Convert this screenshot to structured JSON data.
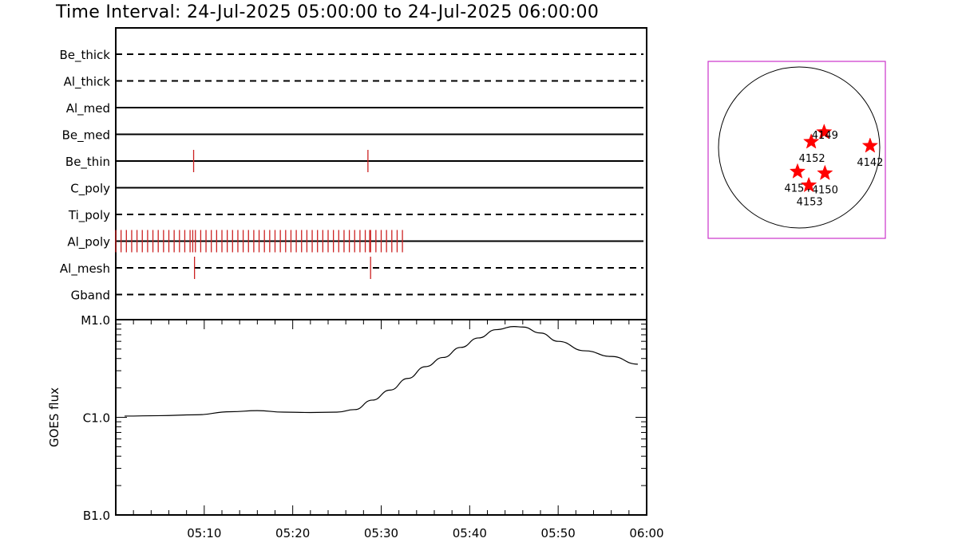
{
  "title": "Time Interval: 24-Jul-2025 05:00:00 to 24-Jul-2025 06:00:00",
  "chart_data": [
    {
      "type": "timeline",
      "x_range_minutes": [
        0,
        60
      ],
      "filters": [
        {
          "name": "Be_thick",
          "style": "dashed",
          "marks": []
        },
        {
          "name": "Al_thick",
          "style": "dashed",
          "marks": []
        },
        {
          "name": "Al_med",
          "style": "solid",
          "marks": []
        },
        {
          "name": "Be_med",
          "style": "solid",
          "marks": []
        },
        {
          "name": "Be_thin",
          "style": "solid",
          "marks": [
            8.8,
            28.5
          ]
        },
        {
          "name": "C_poly",
          "style": "solid",
          "marks": []
        },
        {
          "name": "Ti_poly",
          "style": "dashed",
          "marks": []
        },
        {
          "name": "Al_poly",
          "style": "solid",
          "marks": "dense",
          "mark_start": 0,
          "mark_end": 32.8,
          "mark_step": 0.6
        },
        {
          "name": "Al_mesh",
          "style": "dashed",
          "marks": [
            8.9,
            28.8
          ]
        },
        {
          "name": "Gband",
          "style": "dashed",
          "marks": []
        }
      ],
      "mark_color": "#cc2222"
    },
    {
      "type": "line",
      "ylabel": "GOES flux",
      "y_scale": "log",
      "y_ticks": [
        {
          "label": "B1.0",
          "value": 1e-07
        },
        {
          "label": "C1.0",
          "value": 1e-06
        },
        {
          "label": "M1.0",
          "value": 1e-05
        }
      ],
      "x_ticks": [
        "05:10",
        "05:20",
        "05:30",
        "05:40",
        "05:50",
        "06:00"
      ],
      "x_tick_minutes": [
        10,
        20,
        30,
        40,
        50,
        60
      ],
      "x_range_minutes": [
        0,
        60
      ],
      "series": [
        {
          "x": [
            1,
            5,
            9,
            13,
            16,
            19,
            22,
            25,
            27,
            29,
            31,
            33,
            35,
            37,
            39,
            41,
            43,
            45,
            46,
            48,
            50,
            53,
            56,
            59
          ],
          "y": [
            1.03e-06,
            1.04e-06,
            1.06e-06,
            1.14e-06,
            1.17e-06,
            1.13e-06,
            1.12e-06,
            1.13e-06,
            1.2e-06,
            1.5e-06,
            1.9e-06,
            2.5e-06,
            3.3e-06,
            4.1e-06,
            5.2e-06,
            6.5e-06,
            7.9e-06,
            8.5e-06,
            8.4e-06,
            7.3e-06,
            6e-06,
            4.8e-06,
            4.2e-06,
            3.5e-06
          ]
        }
      ]
    },
    {
      "type": "scatter",
      "subtype": "solar-disk-map",
      "points": [
        {
          "label": "4149",
          "x": 0.31,
          "y": -0.19
        },
        {
          "label": "4152",
          "x": 0.15,
          "y": -0.07
        },
        {
          "label": "4142",
          "x": 0.88,
          "y": -0.02
        },
        {
          "label": "4154",
          "x": -0.02,
          "y": 0.3
        },
        {
          "label": "4150",
          "x": 0.32,
          "y": 0.32
        },
        {
          "label": "4153",
          "x": 0.12,
          "y": 0.47
        }
      ],
      "marker_color": "#ff0000",
      "frame_color": "#cc33cc"
    }
  ]
}
